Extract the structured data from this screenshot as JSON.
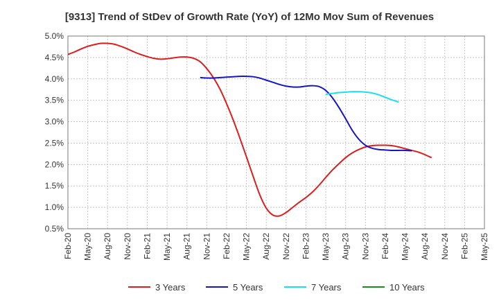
{
  "chart_data": {
    "type": "line",
    "title": "[9313]  Trend of StDev of Growth Rate (YoY) of 12Mo Mov Sum of Revenues",
    "xlabel": "",
    "ylabel": "",
    "ylim": [
      0.5,
      5.0
    ],
    "grid": true,
    "legend_position": "bottom",
    "x_ticks": [
      "Feb-20",
      "May-20",
      "Aug-20",
      "Nov-20",
      "Feb-21",
      "May-21",
      "Aug-21",
      "Nov-21",
      "Feb-22",
      "May-22",
      "Aug-22",
      "Nov-22",
      "Feb-23",
      "May-23",
      "Aug-23",
      "Nov-23",
      "Feb-24",
      "May-24",
      "Aug-24",
      "Nov-24",
      "Feb-25",
      "May-25"
    ],
    "y_ticks": [
      0.5,
      1.0,
      1.5,
      2.0,
      2.5,
      3.0,
      3.5,
      4.0,
      4.5,
      5.0
    ],
    "y_tick_labels": [
      "0.5%",
      "1.0%",
      "1.5%",
      "2.0%",
      "2.5%",
      "3.0%",
      "3.5%",
      "4.0%",
      "4.5%",
      "5.0%"
    ],
    "series": [
      {
        "name": "3 Years",
        "color": "#dd1c1c",
        "points": [
          {
            "x": "Feb-20",
            "y": 4.57
          },
          {
            "x": "Mar-20",
            "y": 4.63
          },
          {
            "x": "Apr-20",
            "y": 4.7
          },
          {
            "x": "May-20",
            "y": 4.76
          },
          {
            "x": "Jun-20",
            "y": 4.8
          },
          {
            "x": "Jul-20",
            "y": 4.83
          },
          {
            "x": "Aug-20",
            "y": 4.83
          },
          {
            "x": "Sep-20",
            "y": 4.81
          },
          {
            "x": "Oct-20",
            "y": 4.76
          },
          {
            "x": "Nov-20",
            "y": 4.7
          },
          {
            "x": "Dec-20",
            "y": 4.63
          },
          {
            "x": "Jan-21",
            "y": 4.57
          },
          {
            "x": "Feb-21",
            "y": 4.52
          },
          {
            "x": "Mar-21",
            "y": 4.48
          },
          {
            "x": "Apr-21",
            "y": 4.46
          },
          {
            "x": "May-21",
            "y": 4.47
          },
          {
            "x": "Jun-21",
            "y": 4.49
          },
          {
            "x": "Jul-21",
            "y": 4.51
          },
          {
            "x": "Aug-21",
            "y": 4.51
          },
          {
            "x": "Sep-21",
            "y": 4.48
          },
          {
            "x": "Oct-21",
            "y": 4.4
          },
          {
            "x": "Nov-21",
            "y": 4.24
          },
          {
            "x": "Dec-21",
            "y": 4.03
          },
          {
            "x": "Jan-22",
            "y": 3.76
          },
          {
            "x": "Feb-22",
            "y": 3.42
          },
          {
            "x": "Mar-22",
            "y": 3.04
          },
          {
            "x": "Apr-22",
            "y": 2.62
          },
          {
            "x": "May-22",
            "y": 2.18
          },
          {
            "x": "Jun-22",
            "y": 1.73
          },
          {
            "x": "Jul-22",
            "y": 1.3
          },
          {
            "x": "Aug-22",
            "y": 0.98
          },
          {
            "x": "Sep-22",
            "y": 0.82
          },
          {
            "x": "Oct-22",
            "y": 0.8
          },
          {
            "x": "Nov-22",
            "y": 0.88
          },
          {
            "x": "Dec-22",
            "y": 1.0
          },
          {
            "x": "Jan-23",
            "y": 1.12
          },
          {
            "x": "Feb-23",
            "y": 1.23
          },
          {
            "x": "Mar-23",
            "y": 1.36
          },
          {
            "x": "Apr-23",
            "y": 1.52
          },
          {
            "x": "May-23",
            "y": 1.7
          },
          {
            "x": "Jun-23",
            "y": 1.87
          },
          {
            "x": "Jul-23",
            "y": 2.02
          },
          {
            "x": "Aug-23",
            "y": 2.16
          },
          {
            "x": "Sep-23",
            "y": 2.27
          },
          {
            "x": "Oct-23",
            "y": 2.35
          },
          {
            "x": "Nov-23",
            "y": 2.41
          },
          {
            "x": "Dec-23",
            "y": 2.44
          },
          {
            "x": "Jan-24",
            "y": 2.45
          },
          {
            "x": "Feb-24",
            "y": 2.45
          },
          {
            "x": "Mar-24",
            "y": 2.44
          },
          {
            "x": "Apr-24",
            "y": 2.41
          },
          {
            "x": "May-24",
            "y": 2.37
          },
          {
            "x": "Jun-24",
            "y": 2.33
          },
          {
            "x": "Jul-24",
            "y": 2.29
          },
          {
            "x": "Aug-24",
            "y": 2.23
          },
          {
            "x": "Sep-24",
            "y": 2.16
          }
        ]
      },
      {
        "name": "5 Years",
        "color": "#1414c8",
        "points": [
          {
            "x": "Oct-21",
            "y": 4.03
          },
          {
            "x": "Nov-21",
            "y": 4.02
          },
          {
            "x": "Dec-21",
            "y": 4.02
          },
          {
            "x": "Jan-22",
            "y": 4.03
          },
          {
            "x": "Feb-22",
            "y": 4.04
          },
          {
            "x": "Mar-22",
            "y": 4.05
          },
          {
            "x": "Apr-22",
            "y": 4.06
          },
          {
            "x": "May-22",
            "y": 4.06
          },
          {
            "x": "Jun-22",
            "y": 4.05
          },
          {
            "x": "Jul-22",
            "y": 4.02
          },
          {
            "x": "Aug-22",
            "y": 3.97
          },
          {
            "x": "Sep-22",
            "y": 3.92
          },
          {
            "x": "Oct-22",
            "y": 3.87
          },
          {
            "x": "Nov-22",
            "y": 3.83
          },
          {
            "x": "Dec-22",
            "y": 3.81
          },
          {
            "x": "Jan-23",
            "y": 3.81
          },
          {
            "x": "Feb-23",
            "y": 3.83
          },
          {
            "x": "Mar-23",
            "y": 3.84
          },
          {
            "x": "Apr-23",
            "y": 3.82
          },
          {
            "x": "May-23",
            "y": 3.73
          },
          {
            "x": "Jun-23",
            "y": 3.56
          },
          {
            "x": "Jul-23",
            "y": 3.33
          },
          {
            "x": "Aug-23",
            "y": 3.07
          },
          {
            "x": "Sep-23",
            "y": 2.8
          },
          {
            "x": "Oct-23",
            "y": 2.59
          },
          {
            "x": "Nov-23",
            "y": 2.45
          },
          {
            "x": "Dec-23",
            "y": 2.38
          },
          {
            "x": "Jan-24",
            "y": 2.35
          },
          {
            "x": "Feb-24",
            "y": 2.34
          },
          {
            "x": "Mar-24",
            "y": 2.33
          },
          {
            "x": "Apr-24",
            "y": 2.33
          },
          {
            "x": "May-24",
            "y": 2.33
          },
          {
            "x": "Jun-24",
            "y": 2.32
          }
        ]
      },
      {
        "name": "7 Years",
        "color": "#18e0ec",
        "points": [
          {
            "x": "May-23",
            "y": 3.64
          },
          {
            "x": "Jun-23",
            "y": 3.66
          },
          {
            "x": "Jul-23",
            "y": 3.68
          },
          {
            "x": "Aug-23",
            "y": 3.69
          },
          {
            "x": "Sep-23",
            "y": 3.7
          },
          {
            "x": "Oct-23",
            "y": 3.7
          },
          {
            "x": "Nov-23",
            "y": 3.69
          },
          {
            "x": "Dec-23",
            "y": 3.67
          },
          {
            "x": "Jan-24",
            "y": 3.63
          },
          {
            "x": "Feb-24",
            "y": 3.57
          },
          {
            "x": "Mar-24",
            "y": 3.51
          },
          {
            "x": "Apr-24",
            "y": 3.46
          }
        ]
      },
      {
        "name": "10 Years",
        "color": "#1a8c1a",
        "points": []
      }
    ]
  }
}
